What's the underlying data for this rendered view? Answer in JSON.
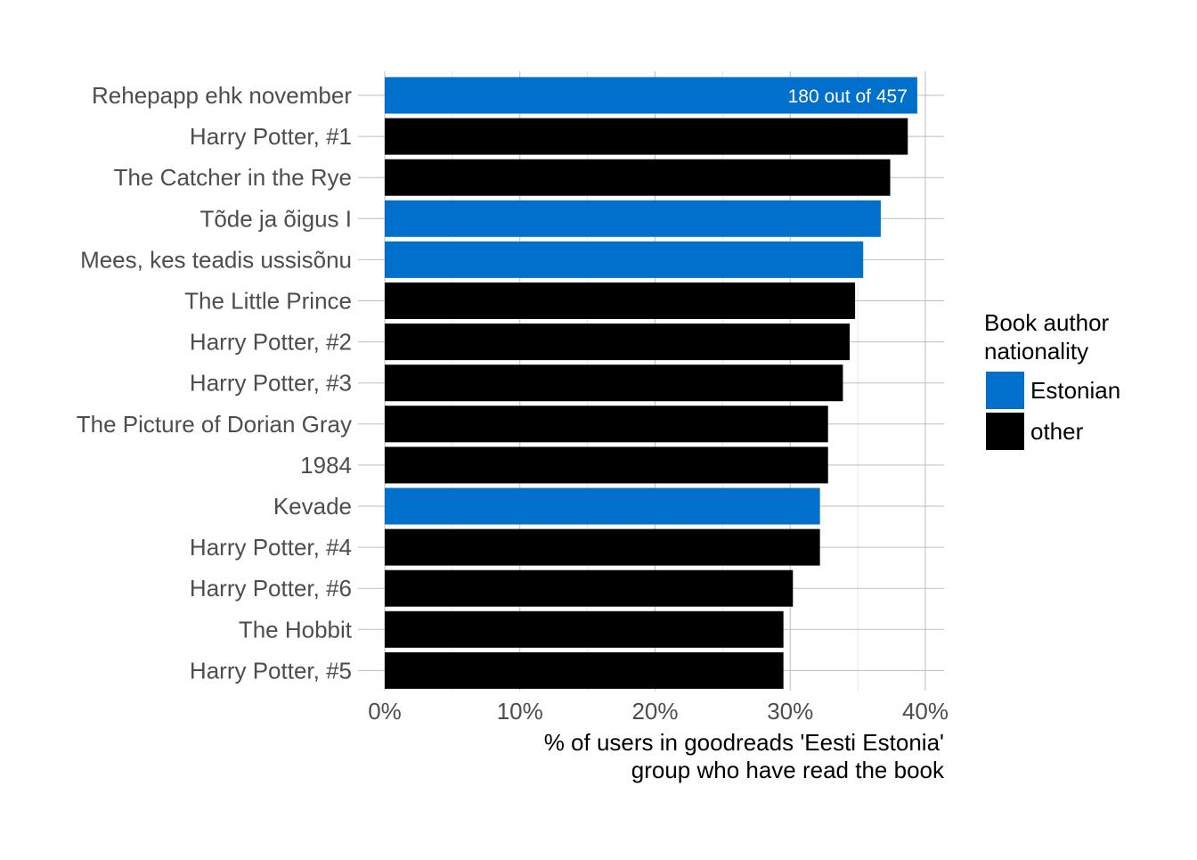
{
  "chart_data": {
    "type": "bar",
    "orientation": "horizontal",
    "categories": [
      "Rehepapp ehk november",
      "Harry Potter, #1",
      "The Catcher in the Rye",
      "Tõde ja õigus I",
      "Mees, kes teadis ussisõnu",
      "The Little Prince",
      "Harry Potter, #2",
      "Harry Potter, #3",
      "The Picture of Dorian Gray",
      "1984",
      "Kevade",
      "Harry Potter, #4",
      "Harry Potter, #6",
      "The Hobbit",
      "Harry Potter, #5"
    ],
    "values": [
      39.4,
      38.7,
      37.4,
      36.7,
      35.4,
      34.8,
      34.4,
      33.9,
      32.8,
      32.8,
      32.2,
      32.2,
      30.2,
      29.5,
      29.5
    ],
    "groups": [
      "Estonian",
      "other",
      "other",
      "Estonian",
      "Estonian",
      "other",
      "other",
      "other",
      "other",
      "other",
      "Estonian",
      "other",
      "other",
      "other",
      "other"
    ],
    "annotation": {
      "category": "Rehepapp ehk november",
      "text": "180 out of 457"
    },
    "xlim": [
      0,
      40
    ],
    "xticks": [
      0,
      10,
      20,
      30,
      40
    ],
    "xtick_labels": [
      "0%",
      "10%",
      "20%",
      "30%",
      "40%"
    ],
    "xlabel_lines": [
      "% of users in goodreads 'Eesti Estonia'",
      "group who have read the book"
    ],
    "ylabel": "",
    "grid": true,
    "legend": {
      "title_lines": [
        "Book author",
        "nationality"
      ],
      "placement": "right",
      "items": [
        {
          "name": "Estonian",
          "color": "#0070cc"
        },
        {
          "name": "other",
          "color": "#000000"
        }
      ]
    }
  }
}
